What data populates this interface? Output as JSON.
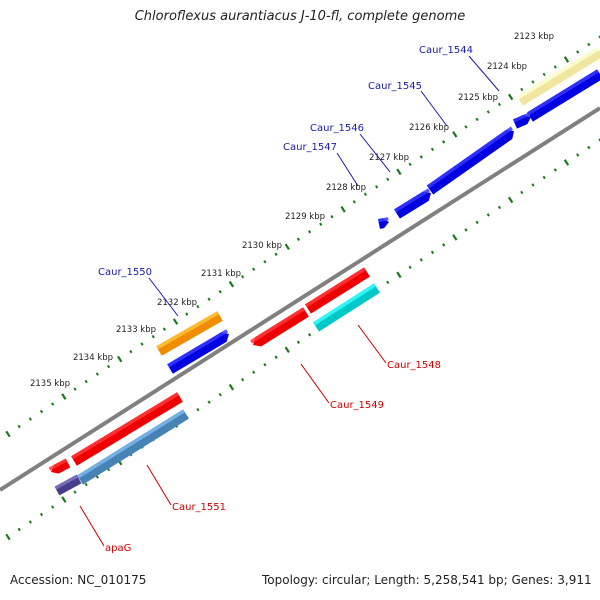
{
  "title": "Chloroflexus aurantiacus J-10-fl, complete genome",
  "accession": "Accession: NC_010175",
  "summary": "Topology: circular; Length: 5,258,541 bp; Genes: 3,911",
  "colors": {
    "axis": "#808080",
    "ticks": "#1a7a1a",
    "label_blue": "#1a1aa6",
    "label_red": "#cc0000"
  },
  "kbp_labels": [
    "2123 kbp",
    "2124 kbp",
    "2125 kbp",
    "2126 kbp",
    "2127 kbp",
    "2128 kbp",
    "2129 kbp",
    "2130 kbp",
    "2131 kbp",
    "2132 kbp",
    "2133 kbp",
    "2134 kbp",
    "2135 kbp"
  ],
  "genes": [
    {
      "name": "Caur_1544",
      "color": "#f0e6a0",
      "strand": "forward"
    },
    {
      "name": "Caur_1545",
      "color": "#0000e0",
      "strand": "forward"
    },
    {
      "name": "Caur_1546",
      "color": "#0000e0",
      "strand": "forward"
    },
    {
      "name": "Caur_1547",
      "color": "#0000e0",
      "strand": "forward"
    },
    {
      "name": "Caur_1550",
      "color": "#f08c00",
      "strand": "forward"
    },
    {
      "name": "Caur_1548",
      "color": "#00c8c8",
      "strand": "reverse"
    },
    {
      "name": "Caur_1549",
      "color": "#ee0000",
      "strand": "reverse"
    },
    {
      "name": "Caur_1551",
      "color": "#4682b4",
      "strand": "reverse"
    },
    {
      "name": "apaG",
      "color": "#483d8b",
      "strand": "reverse"
    }
  ]
}
